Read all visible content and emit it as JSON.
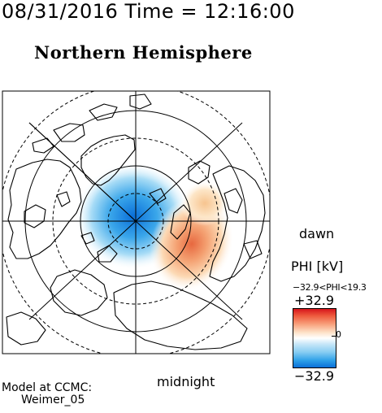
{
  "header": {
    "time_line": "08/31/2016 Time = 12:16:00"
  },
  "map": {
    "title": "Northern Hemisphere",
    "labels": {
      "dawn": "dawn",
      "midnight": "midnight"
    }
  },
  "legend": {
    "title": "PHI [kV]",
    "range_text": "−32.9<PHI<19.3",
    "max_label": "+32.9",
    "min_label": "−32.9",
    "zero_label": "0",
    "colors": {
      "positive": "#d7151b",
      "zero": "#ffffff",
      "negative": "#0a6fd8"
    }
  },
  "footer": {
    "line1": "Model at CCMC:",
    "line2": "Weimer_05"
  }
}
